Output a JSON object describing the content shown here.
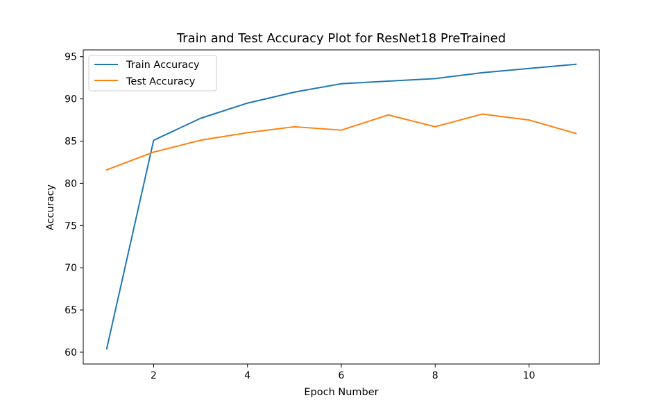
{
  "chart_data": {
    "type": "line",
    "title": "Train and Test Accuracy Plot for ResNet18 PreTrained",
    "xlabel": "Epoch Number",
    "ylabel": "Accuracy",
    "x": [
      1,
      2,
      3,
      4,
      5,
      6,
      7,
      8,
      9,
      10,
      11
    ],
    "xlim": [
      0.5,
      11.5
    ],
    "ylim": [
      58.6,
      95.8
    ],
    "xticks": [
      2,
      4,
      6,
      8,
      10
    ],
    "yticks": [
      60,
      65,
      70,
      75,
      80,
      85,
      90,
      95
    ],
    "grid": false,
    "legend_position": "top-left",
    "series": [
      {
        "name": "Train Accuracy",
        "color": "#1f77b4",
        "values": [
          60.4,
          85.1,
          87.7,
          89.5,
          90.8,
          91.8,
          92.1,
          92.4,
          93.1,
          93.6,
          94.1
        ]
      },
      {
        "name": "Test Accuracy",
        "color": "#ff7f0e",
        "values": [
          81.6,
          83.7,
          85.1,
          86.0,
          86.7,
          86.3,
          88.1,
          86.7,
          88.2,
          87.5,
          85.9
        ]
      }
    ]
  }
}
